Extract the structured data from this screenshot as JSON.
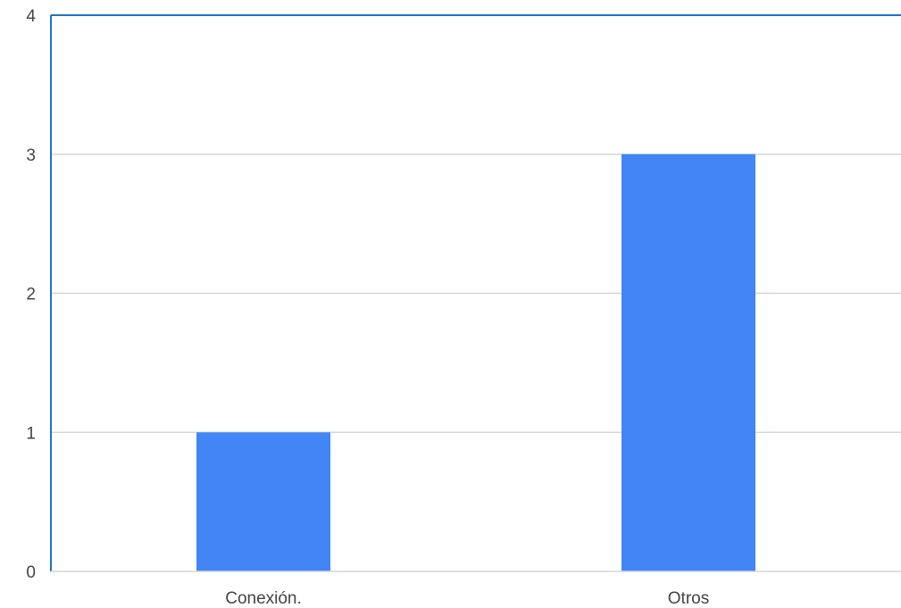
{
  "chart_data": {
    "type": "bar",
    "title": "",
    "xlabel": "",
    "ylabel": "",
    "categories": [
      "Conexión.",
      "Otros"
    ],
    "values": [
      1,
      3
    ],
    "ylim": [
      0,
      4
    ],
    "yticks": [
      "0",
      "1",
      "2",
      "3",
      "4"
    ],
    "grid": true,
    "legend": "none",
    "colors": {
      "bar": "#4285f4",
      "axis": "#1a73c8",
      "grid": "#d6d6d6",
      "text": "#444444"
    }
  }
}
